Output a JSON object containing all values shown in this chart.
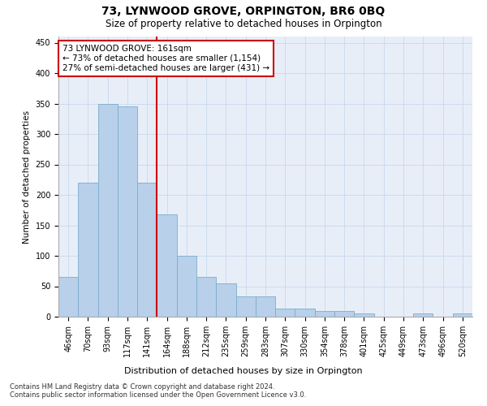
{
  "title": "73, LYNWOOD GROVE, ORPINGTON, BR6 0BQ",
  "subtitle": "Size of property relative to detached houses in Orpington",
  "xlabel": "Distribution of detached houses by size in Orpington",
  "ylabel": "Number of detached properties",
  "bar_labels": [
    "46sqm",
    "70sqm",
    "93sqm",
    "117sqm",
    "141sqm",
    "164sqm",
    "188sqm",
    "212sqm",
    "235sqm",
    "259sqm",
    "283sqm",
    "307sqm",
    "330sqm",
    "354sqm",
    "378sqm",
    "401sqm",
    "425sqm",
    "449sqm",
    "473sqm",
    "496sqm",
    "520sqm"
  ],
  "bar_values": [
    65,
    220,
    350,
    345,
    220,
    168,
    100,
    65,
    55,
    33,
    33,
    13,
    13,
    10,
    10,
    5,
    0,
    0,
    5,
    0,
    5
  ],
  "bar_color": "#b8d0ea",
  "bar_edge_color": "#7aaecc",
  "vline_color": "#cc0000",
  "vline_pos": 4.5,
  "annotation_text": "73 LYNWOOD GROVE: 161sqm\n← 73% of detached houses are smaller (1,154)\n27% of semi-detached houses are larger (431) →",
  "annotation_box_color": "#cc0000",
  "ylim": [
    0,
    460
  ],
  "yticks": [
    0,
    50,
    100,
    150,
    200,
    250,
    300,
    350,
    400,
    450
  ],
  "grid_color": "#c8d8ec",
  "bg_color": "#e8eef8",
  "footer1": "Contains HM Land Registry data © Crown copyright and database right 2024.",
  "footer2": "Contains public sector information licensed under the Open Government Licence v3.0."
}
